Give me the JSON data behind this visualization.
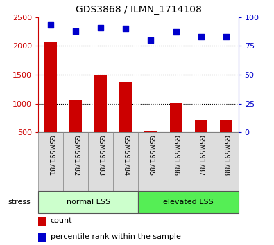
{
  "title": "GDS3868 / ILMN_1714108",
  "samples": [
    "GSM591781",
    "GSM591782",
    "GSM591783",
    "GSM591784",
    "GSM591785",
    "GSM591786",
    "GSM591787",
    "GSM591788"
  ],
  "bar_values": [
    2070,
    1055,
    1490,
    1365,
    520,
    1005,
    720,
    720
  ],
  "percentile_values": [
    93,
    88,
    91,
    90,
    80,
    87,
    83,
    83
  ],
  "bar_color": "#cc0000",
  "dot_color": "#0000cc",
  "ylim_left": [
    500,
    2500
  ],
  "ylim_right": [
    0,
    100
  ],
  "yticks_left": [
    500,
    1000,
    1500,
    2000,
    2500
  ],
  "yticks_right": [
    0,
    25,
    50,
    75,
    100
  ],
  "group1_label": "normal LSS",
  "group2_label": "elevated LSS",
  "group1_count": 4,
  "group2_count": 4,
  "group1_color": "#ccffcc",
  "group2_color": "#55ee55",
  "stress_label": "stress",
  "legend_count_label": "count",
  "legend_percentile_label": "percentile rank within the sample",
  "left_tick_color": "#cc0000",
  "right_tick_color": "#0000cc",
  "bar_bottom": 500,
  "sample_box_color": "#dddddd",
  "grid_lines": [
    1000,
    1500,
    2000
  ]
}
